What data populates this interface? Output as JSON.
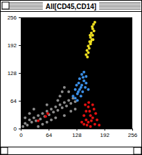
{
  "chart_data": {
    "type": "scatter",
    "title": "All[CD45,CD14]",
    "xlim": [
      0,
      256
    ],
    "ylim": [
      0,
      256
    ],
    "xticks": [
      0,
      64,
      128,
      192,
      256
    ],
    "yticks": [
      0,
      64,
      128,
      192,
      256
    ],
    "grid": false,
    "marker": "dot",
    "series": [
      {
        "color": "#8c8c8c",
        "x": [
          5,
          10,
          15,
          20,
          25,
          30,
          35,
          40,
          45,
          50,
          55,
          60,
          65,
          70,
          75,
          80,
          85,
          90,
          95,
          100,
          105,
          110,
          115,
          120,
          125,
          90,
          95,
          100,
          85,
          60,
          20,
          30,
          10,
          70,
          80,
          50,
          40,
          110,
          115,
          125,
          100,
          60
        ],
        "values": [
          5,
          12,
          8,
          20,
          15,
          25,
          18,
          30,
          22,
          35,
          28,
          40,
          32,
          45,
          38,
          50,
          42,
          55,
          48,
          60,
          52,
          65,
          58,
          70,
          62,
          75,
          85,
          95,
          65,
          55,
          35,
          45,
          25,
          20,
          25,
          10,
          5,
          85,
          40,
          45,
          30,
          15
        ]
      },
      {
        "color": "#e01010",
        "x": [
          145,
          150,
          155,
          160,
          165,
          170,
          150,
          155,
          160,
          175,
          145,
          158,
          168,
          152,
          162,
          172,
          148,
          140,
          180,
          57,
          62,
          40,
          165,
          156
        ],
        "values": [
          10,
          20,
          15,
          30,
          25,
          10,
          40,
          50,
          5,
          20,
          30,
          40,
          45,
          8,
          18,
          35,
          55,
          15,
          8,
          28,
          35,
          18,
          55,
          60
        ]
      },
      {
        "color": "#3a8ee6",
        "x": [
          125,
          130,
          135,
          140,
          145,
          138,
          132,
          128,
          142,
          148,
          150,
          135,
          140,
          145,
          125,
          120,
          130,
          150,
          155,
          138,
          143,
          133
        ],
        "values": [
          70,
          80,
          90,
          100,
          110,
          95,
          85,
          100,
          85,
          95,
          120,
          115,
          125,
          130,
          90,
          75,
          65,
          105,
          90,
          75,
          118,
          105
        ]
      },
      {
        "color": "#f0e020",
        "x": [
          150,
          152,
          155,
          158,
          160,
          162,
          165,
          167,
          160,
          163,
          157,
          165,
          168,
          170,
          155,
          161,
          159,
          164,
          153,
          166
        ],
        "values": [
          170,
          180,
          190,
          200,
          210,
          220,
          230,
          240,
          195,
          205,
          185,
          215,
          225,
          245,
          175,
          200,
          215,
          235,
          165,
          205
        ]
      }
    ]
  }
}
